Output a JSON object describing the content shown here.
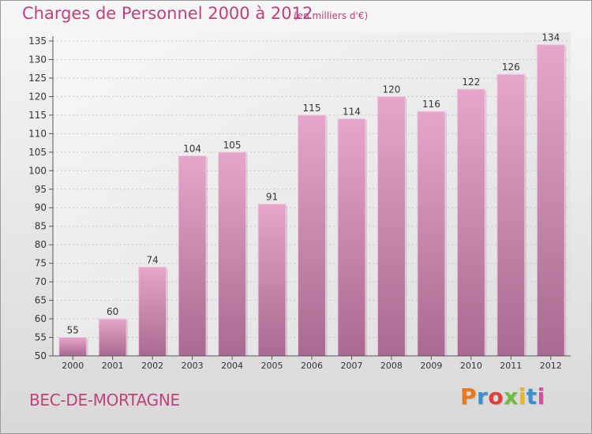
{
  "header": {
    "title": "Charges de Personnel 2000 à 2012",
    "units": "(en milliers d'€)"
  },
  "footer": {
    "commune": "BEC-DE-MORTAGNE",
    "brand": "Proxiti",
    "brand_colors": [
      "#e8791e",
      "#3a8fd0",
      "#e23b3b",
      "#6bbf3a",
      "#e8b81e",
      "#3a8fd0",
      "#d04fa0"
    ]
  },
  "chart_data": {
    "type": "bar",
    "categories": [
      "2000",
      "2001",
      "2002",
      "2003",
      "2004",
      "2005",
      "2006",
      "2007",
      "2008",
      "2009",
      "2010",
      "2011",
      "2012"
    ],
    "values": [
      55,
      60,
      74,
      104,
      105,
      91,
      115,
      114,
      120,
      116,
      122,
      126,
      134
    ],
    "ylim": [
      50,
      135
    ],
    "yticks": [
      50,
      55,
      60,
      65,
      70,
      75,
      80,
      85,
      90,
      95,
      100,
      105,
      110,
      115,
      120,
      125,
      130,
      135
    ],
    "bar_color_top": "#e6a6cb",
    "bar_color_bottom": "#a86a90",
    "grid": true
  }
}
